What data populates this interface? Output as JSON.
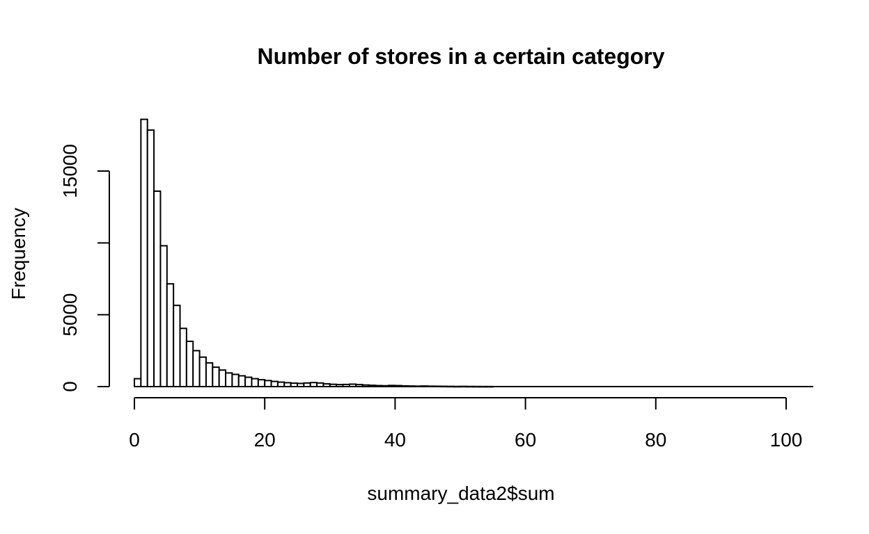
{
  "chart_data": {
    "type": "bar",
    "title": "Number of stores in a certain category",
    "xlabel": "summary_data2$sum",
    "ylabel": "Frequency",
    "xlim": [
      0,
      104
    ],
    "ylim": [
      0,
      19000
    ],
    "x_ticks": [
      0,
      20,
      40,
      60,
      80,
      100
    ],
    "x_tick_labels": [
      "0",
      "20",
      "40",
      "60",
      "80",
      "100"
    ],
    "y_ticks": [
      0,
      5000,
      10000,
      15000
    ],
    "y_tick_labels": [
      "0",
      "5000",
      "",
      "15000"
    ],
    "bin_width": 1,
    "bin_starts": [
      0,
      1,
      2,
      3,
      4,
      5,
      6,
      7,
      8,
      9,
      10,
      11,
      12,
      13,
      14,
      15,
      16,
      17,
      18,
      19,
      20,
      21,
      22,
      23,
      24,
      25,
      26,
      27,
      28,
      29,
      30,
      31,
      32,
      33,
      34,
      35,
      36,
      37,
      38,
      39,
      40,
      41,
      42,
      43,
      44,
      45,
      46,
      47,
      48,
      49,
      50,
      51,
      52,
      53,
      54
    ],
    "values": [
      550,
      18600,
      17850,
      13600,
      9800,
      7150,
      5650,
      4050,
      3150,
      2500,
      2050,
      1650,
      1350,
      1150,
      950,
      850,
      750,
      650,
      550,
      480,
      420,
      360,
      310,
      270,
      240,
      220,
      250,
      280,
      250,
      190,
      160,
      140,
      150,
      170,
      140,
      110,
      90,
      70,
      60,
      80,
      70,
      50,
      40,
      30,
      40,
      30,
      25,
      20,
      15,
      10,
      15,
      10,
      8,
      6,
      5
    ],
    "grid": false,
    "legend": "none"
  }
}
